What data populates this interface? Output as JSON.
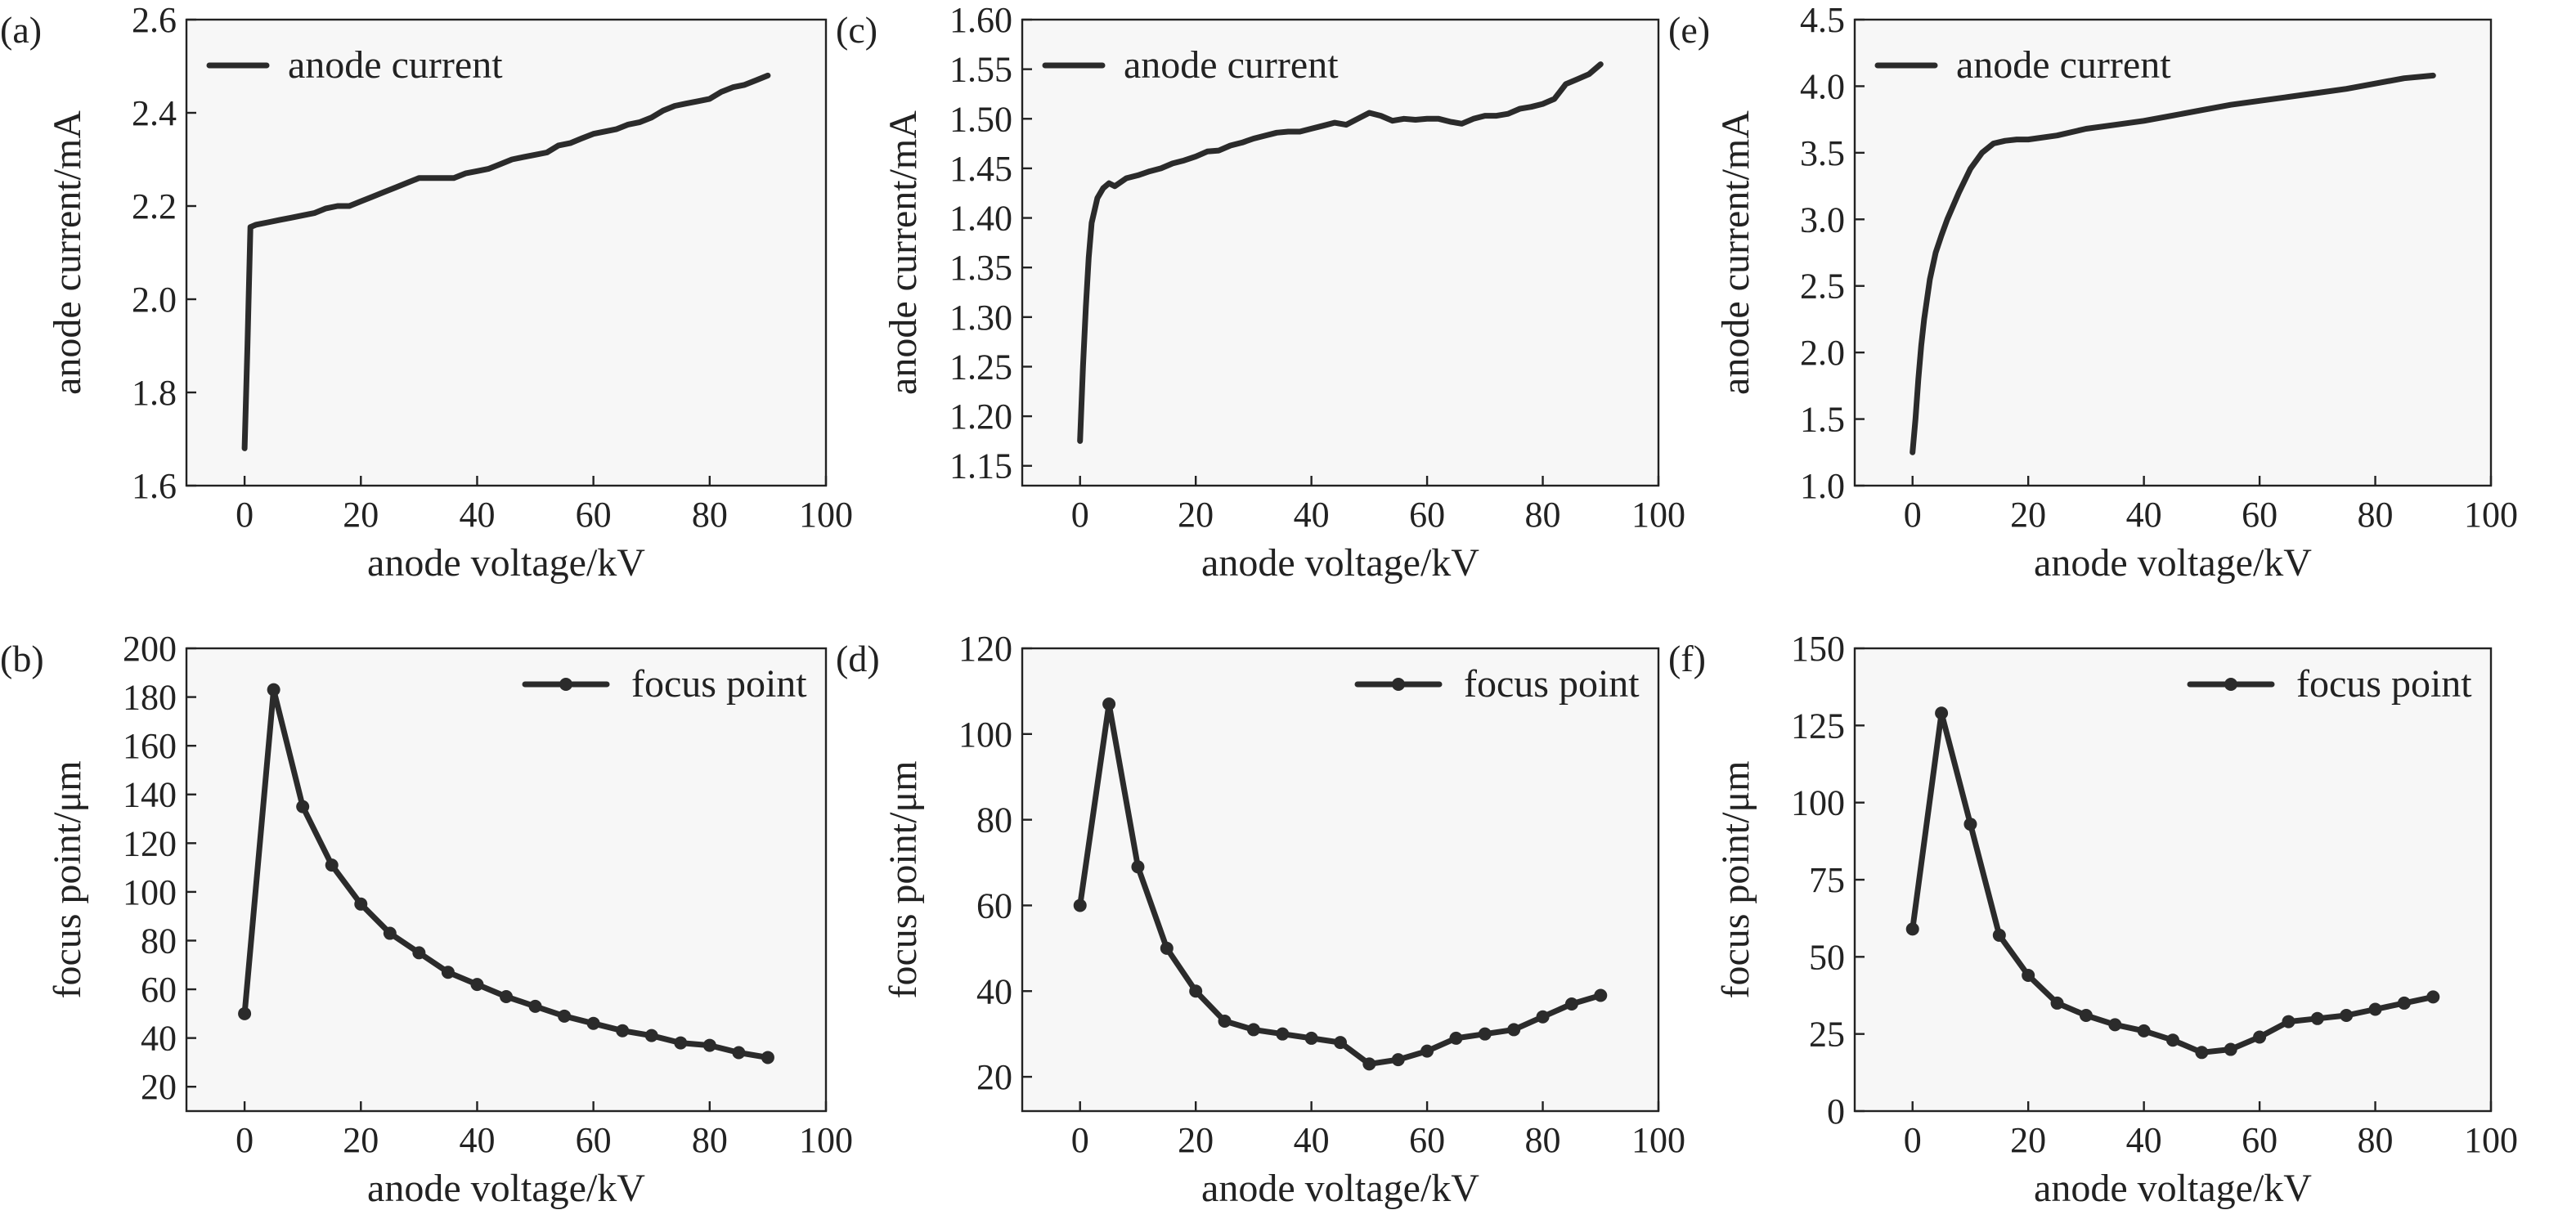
{
  "chart_data": [
    {
      "panel": "(a)",
      "type": "line",
      "xlabel": "anode voltage/kV",
      "ylabel": "anode current/mA",
      "xlim": [
        -10,
        100
      ],
      "ylim": [
        1.6,
        2.6
      ],
      "xticks": [
        0,
        20,
        40,
        60,
        80,
        100
      ],
      "yticks": [
        1.6,
        1.8,
        2.0,
        2.2,
        2.4,
        2.6
      ],
      "ytick_labels": [
        "1.6",
        "1.8",
        "2.0",
        "2.2",
        "2.4",
        "2.6"
      ],
      "legend": {
        "position": "top-left",
        "style": "line"
      },
      "series": [
        {
          "name": "anode current",
          "x": [
            0,
            0.5,
            1,
            2,
            4,
            6,
            8,
            10,
            12,
            14,
            16,
            18,
            20,
            22,
            24,
            26,
            28,
            30,
            32,
            34,
            36,
            38,
            40,
            42,
            44,
            46,
            48,
            50,
            52,
            54,
            56,
            58,
            60,
            62,
            64,
            66,
            68,
            70,
            72,
            74,
            76,
            78,
            80,
            82,
            84,
            86,
            88,
            90
          ],
          "y": [
            1.68,
            1.9,
            2.155,
            2.16,
            2.165,
            2.17,
            2.175,
            2.18,
            2.185,
            2.195,
            2.2,
            2.2,
            2.21,
            2.22,
            2.23,
            2.24,
            2.25,
            2.26,
            2.26,
            2.26,
            2.26,
            2.27,
            2.275,
            2.28,
            2.29,
            2.3,
            2.305,
            2.31,
            2.315,
            2.33,
            2.335,
            2.345,
            2.355,
            2.36,
            2.365,
            2.375,
            2.38,
            2.39,
            2.405,
            2.415,
            2.42,
            2.425,
            2.43,
            2.445,
            2.455,
            2.46,
            2.47,
            2.48
          ]
        }
      ]
    },
    {
      "panel": "(b)",
      "type": "line",
      "xlabel": "anode voltage/kV",
      "ylabel": "focus point/μm",
      "xlim": [
        -10,
        100
      ],
      "ylim": [
        10,
        200
      ],
      "xticks": [
        0,
        20,
        40,
        60,
        80,
        100
      ],
      "yticks": [
        20,
        40,
        60,
        80,
        100,
        120,
        140,
        160,
        180,
        200
      ],
      "ytick_labels": [
        "20",
        "40",
        "60",
        "80",
        "100",
        "120",
        "140",
        "160",
        "180",
        "200"
      ],
      "legend": {
        "position": "top-right",
        "style": "line-marker"
      },
      "series": [
        {
          "name": "focus point",
          "x": [
            0,
            5,
            10,
            15,
            20,
            25,
            30,
            35,
            40,
            45,
            50,
            55,
            60,
            65,
            70,
            75,
            80,
            85,
            90
          ],
          "y": [
            50,
            183,
            135,
            111,
            95,
            83,
            75,
            67,
            62,
            57,
            53,
            49,
            46,
            43,
            41,
            38,
            37,
            34,
            32
          ]
        }
      ]
    },
    {
      "panel": "(c)",
      "type": "line",
      "xlabel": "anode voltage/kV",
      "ylabel": "anode current/mA",
      "xlim": [
        -10,
        100
      ],
      "ylim": [
        1.13,
        1.6
      ],
      "xticks": [
        0,
        20,
        40,
        60,
        80,
        100
      ],
      "yticks": [
        1.15,
        1.2,
        1.25,
        1.3,
        1.35,
        1.4,
        1.45,
        1.5,
        1.55,
        1.6
      ],
      "ytick_labels": [
        "1.15",
        "1.20",
        "1.25",
        "1.30",
        "1.35",
        "1.40",
        "1.45",
        "1.50",
        "1.55",
        "1.60"
      ],
      "legend": {
        "position": "top-left",
        "style": "line"
      },
      "series": [
        {
          "name": "anode current",
          "x": [
            0,
            0.5,
            1,
            1.5,
            2,
            3,
            4,
            5,
            6,
            8,
            10,
            12,
            14,
            16,
            18,
            20,
            22,
            24,
            26,
            28,
            30,
            32,
            34,
            36,
            38,
            40,
            42,
            44,
            46,
            48,
            50,
            52,
            54,
            56,
            58,
            60,
            62,
            64,
            66,
            68,
            70,
            72,
            74,
            76,
            78,
            80,
            82,
            84,
            86,
            88,
            90
          ],
          "y": [
            1.175,
            1.25,
            1.31,
            1.36,
            1.395,
            1.42,
            1.43,
            1.435,
            1.432,
            1.44,
            1.443,
            1.447,
            1.45,
            1.455,
            1.458,
            1.462,
            1.467,
            1.468,
            1.473,
            1.476,
            1.48,
            1.483,
            1.486,
            1.487,
            1.487,
            1.49,
            1.493,
            1.496,
            1.494,
            1.5,
            1.506,
            1.503,
            1.498,
            1.5,
            1.499,
            1.5,
            1.5,
            1.497,
            1.495,
            1.5,
            1.503,
            1.503,
            1.505,
            1.51,
            1.512,
            1.515,
            1.52,
            1.535,
            1.54,
            1.545,
            1.555
          ]
        }
      ]
    },
    {
      "panel": "(d)",
      "type": "line",
      "xlabel": "anode voltage/kV",
      "ylabel": "focus point/μm",
      "xlim": [
        -10,
        100
      ],
      "ylim": [
        12,
        120
      ],
      "xticks": [
        0,
        20,
        40,
        60,
        80,
        100
      ],
      "yticks": [
        20,
        40,
        60,
        80,
        100,
        120
      ],
      "ytick_labels": [
        "20",
        "40",
        "60",
        "80",
        "100",
        "120"
      ],
      "legend": {
        "position": "top-right",
        "style": "line-marker"
      },
      "series": [
        {
          "name": "focus point",
          "x": [
            0,
            5,
            10,
            15,
            20,
            25,
            30,
            35,
            40,
            45,
            50,
            55,
            60,
            65,
            70,
            75,
            80,
            85,
            90
          ],
          "y": [
            60,
            107,
            69,
            50,
            40,
            33,
            31,
            30,
            29,
            28,
            23,
            24,
            26,
            29,
            30,
            31,
            34,
            37,
            39
          ]
        }
      ]
    },
    {
      "panel": "(e)",
      "type": "line",
      "xlabel": "anode voltage/kV",
      "ylabel": "anode current/mA",
      "xlim": [
        -10,
        100
      ],
      "ylim": [
        1.0,
        4.5
      ],
      "xticks": [
        0,
        20,
        40,
        60,
        80,
        100
      ],
      "yticks": [
        1.0,
        1.5,
        2.0,
        2.5,
        3.0,
        3.5,
        4.0,
        4.5
      ],
      "ytick_labels": [
        "1.0",
        "1.5",
        "2.0",
        "2.5",
        "3.0",
        "3.5",
        "4.0",
        "4.5"
      ],
      "legend": {
        "position": "top-left",
        "style": "line"
      },
      "series": [
        {
          "name": "anode current",
          "x": [
            0,
            0.5,
            1,
            1.5,
            2,
            3,
            4,
            5,
            6,
            8,
            10,
            12,
            14,
            16,
            18,
            20,
            25,
            30,
            35,
            40,
            45,
            50,
            55,
            60,
            65,
            70,
            75,
            80,
            85,
            90
          ],
          "y": [
            1.25,
            1.5,
            1.8,
            2.05,
            2.25,
            2.55,
            2.75,
            2.88,
            3.0,
            3.2,
            3.38,
            3.5,
            3.57,
            3.59,
            3.6,
            3.6,
            3.63,
            3.68,
            3.71,
            3.74,
            3.78,
            3.82,
            3.86,
            3.89,
            3.92,
            3.95,
            3.98,
            4.02,
            4.06,
            4.08
          ]
        }
      ]
    },
    {
      "panel": "(f)",
      "type": "line",
      "xlabel": "anode voltage/kV",
      "ylabel": "focus point/μm",
      "xlim": [
        -10,
        100
      ],
      "ylim": [
        0,
        150
      ],
      "xticks": [
        0,
        20,
        40,
        60,
        80,
        100
      ],
      "yticks": [
        0,
        25,
        50,
        75,
        100,
        125,
        150
      ],
      "ytick_labels": [
        "0",
        "25",
        "50",
        "75",
        "100",
        "125",
        "150"
      ],
      "legend": {
        "position": "top-right",
        "style": "line-marker"
      },
      "series": [
        {
          "name": "focus point",
          "x": [
            0,
            5,
            10,
            15,
            20,
            25,
            30,
            35,
            40,
            45,
            50,
            55,
            60,
            65,
            70,
            75,
            80,
            85,
            90
          ],
          "y": [
            59,
            129,
            93,
            57,
            44,
            35,
            31,
            28,
            26,
            23,
            19,
            20,
            24,
            29,
            30,
            31,
            33,
            35,
            37
          ]
        }
      ]
    }
  ]
}
